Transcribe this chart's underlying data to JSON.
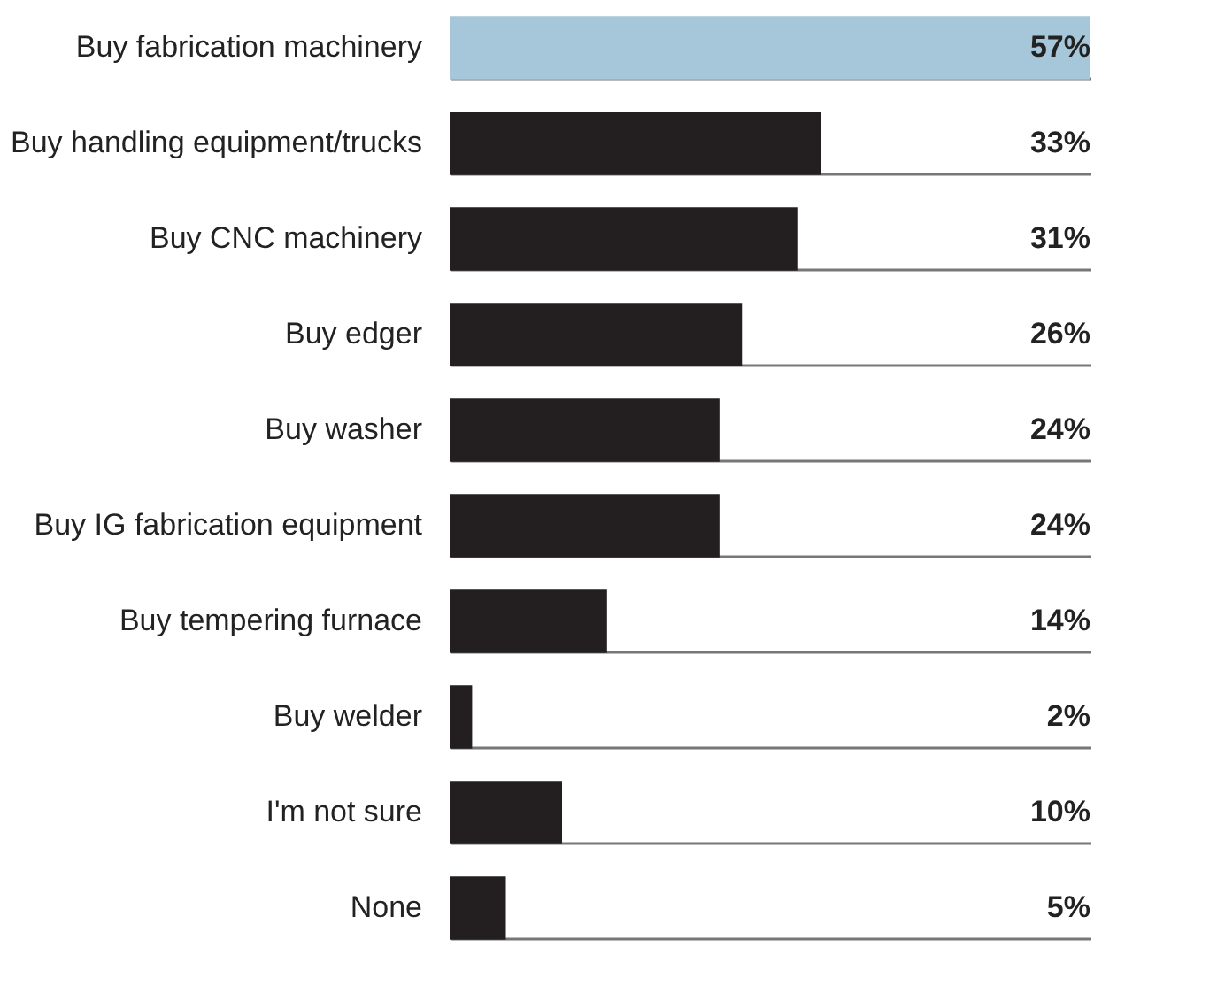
{
  "chart_data": {
    "type": "bar",
    "orientation": "horizontal",
    "grid": "y",
    "categories": [
      "Buy fabrication machinery",
      "Buy handling equipment/trucks",
      "Buy CNC machinery",
      "Buy edger",
      "Buy washer",
      "Buy IG fabrication equipment",
      "Buy tempering furnace",
      "Buy welder",
      "I'm not sure",
      "None"
    ],
    "values": [
      57,
      33,
      31,
      26,
      24,
      24,
      14,
      2,
      10,
      5
    ],
    "colors": [
      "#a6c6d9",
      "#231f20",
      "#231f20",
      "#231f20",
      "#231f20",
      "#231f20",
      "#231f20",
      "#231f20",
      "#231f20",
      "#231f20"
    ],
    "value_labels": [
      "57%",
      "33%",
      "31%",
      "26%",
      "24%",
      "24%",
      "14%",
      "2%",
      "10%",
      "5%"
    ],
    "xlim": [
      0,
      57
    ],
    "tick_labels": "y"
  }
}
